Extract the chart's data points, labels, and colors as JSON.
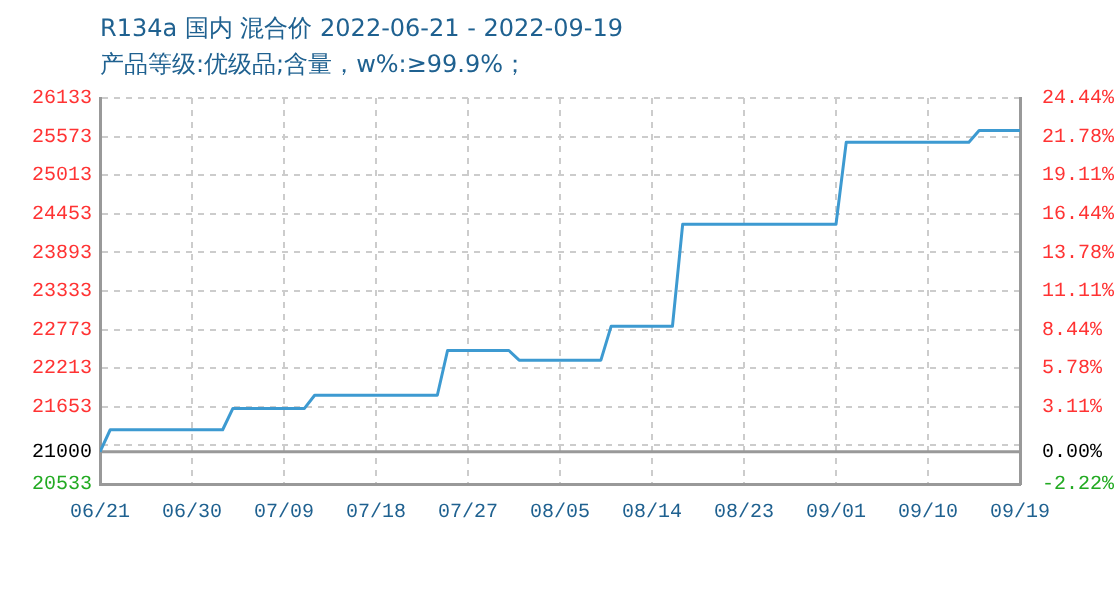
{
  "chart_data": {
    "type": "line",
    "title": "R134a 国内 混合价 2022-06-21 - 2022-09-19",
    "subtitle": "产品等级:优级品;含量，w%:≥99.9%；",
    "x": [
      "2022-06-21",
      "2022-06-22",
      "2022-07-03",
      "2022-07-04",
      "2022-07-11",
      "2022-07-12",
      "2022-07-24",
      "2022-07-25",
      "2022-07-31",
      "2022-08-01",
      "2022-08-09",
      "2022-08-10",
      "2022-08-16",
      "2022-08-17",
      "2022-09-01",
      "2022-09-02",
      "2022-09-14",
      "2022-09-15",
      "2022-09-19"
    ],
    "series": [
      {
        "color": "#3d9ad1",
        "values": [
          21000,
          21320,
          21320,
          21630,
          21630,
          21820,
          21820,
          22470,
          22470,
          22330,
          22330,
          22820,
          22820,
          24300,
          24300,
          25490,
          25490,
          25660,
          25660
        ]
      }
    ],
    "xlim": [
      "2022-06-21",
      "2022-09-19"
    ],
    "xticks": [
      {
        "value": "2022-06-21",
        "label": "06/21"
      },
      {
        "value": "2022-06-30",
        "label": "06/30"
      },
      {
        "value": "2022-07-09",
        "label": "07/09"
      },
      {
        "value": "2022-07-18",
        "label": "07/18"
      },
      {
        "value": "2022-07-27",
        "label": "07/27"
      },
      {
        "value": "2022-08-05",
        "label": "08/05"
      },
      {
        "value": "2022-08-14",
        "label": "08/14"
      },
      {
        "value": "2022-08-23",
        "label": "08/23"
      },
      {
        "value": "2022-09-01",
        "label": "09/01"
      },
      {
        "value": "2022-09-10",
        "label": "09/10"
      },
      {
        "value": "2022-09-19",
        "label": "09/19"
      }
    ],
    "ylim": [
      20533,
      26133
    ],
    "yticks": [
      20533,
      21000,
      {
        "value": 21093,
        "label": null
      },
      21653,
      22213,
      22773,
      23333,
      23893,
      24453,
      25013,
      25573,
      26133
    ],
    "y2lim": [
      -2.22,
      24.44
    ],
    "y2ticks": [
      {
        "value": -2.22,
        "label": "-2.22%"
      },
      {
        "value": 0,
        "label": "0.00%"
      },
      {
        "value": 3.11,
        "label": "3.11%"
      },
      {
        "value": 5.78,
        "label": "5.78%"
      },
      {
        "value": 8.44,
        "label": "8.44%"
      },
      {
        "value": 11.11,
        "label": "11.11%"
      },
      {
        "value": 13.78,
        "label": "13.78%"
      },
      {
        "value": 16.44,
        "label": "16.44%"
      },
      {
        "value": 19.11,
        "label": "19.11%"
      },
      {
        "value": 21.78,
        "label": "21.78%"
      },
      {
        "value": 24.44,
        "label": "24.44%"
      }
    ],
    "ref_lines": [
      {
        "axis": "y",
        "value": 21000,
        "color": "#999999"
      }
    ],
    "grid": true,
    "legend": false,
    "marker": "none",
    "line_style": "solid"
  }
}
